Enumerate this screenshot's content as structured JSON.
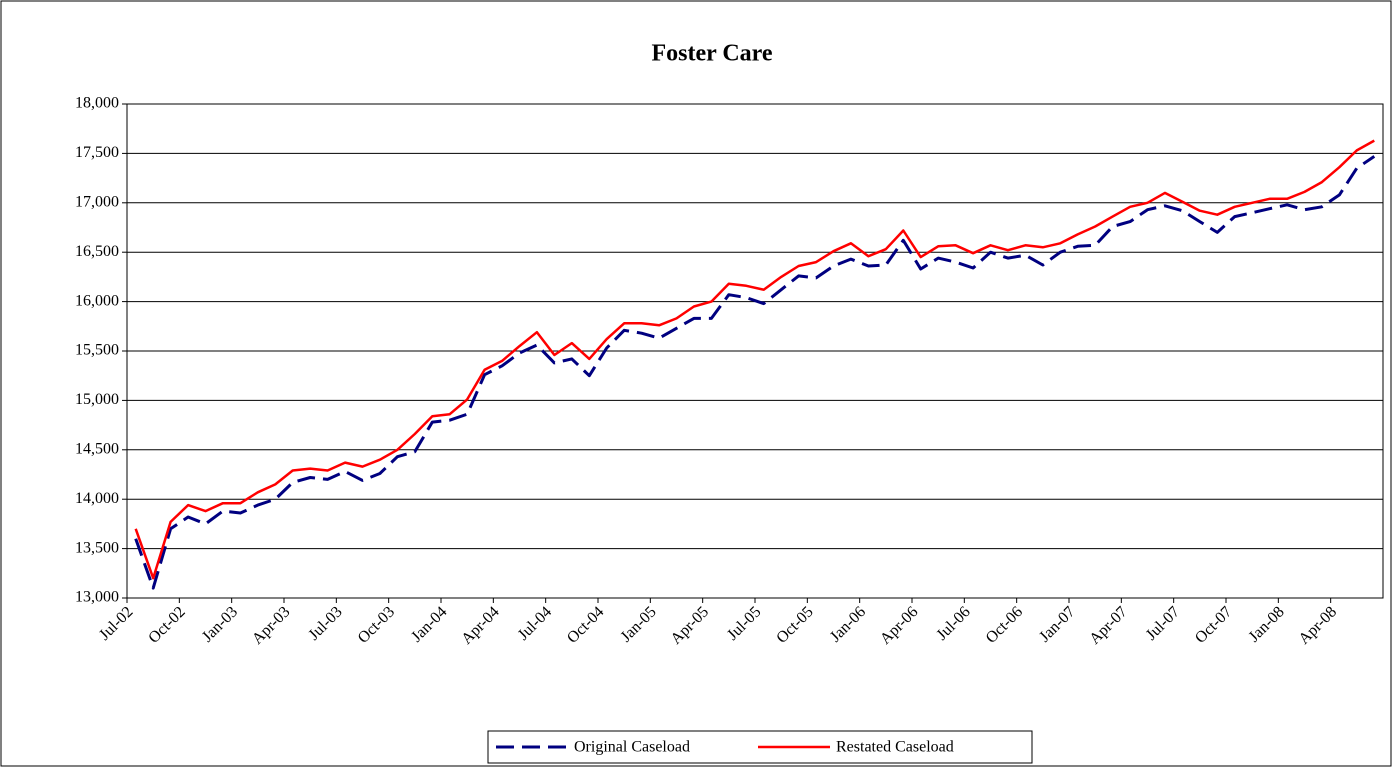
{
  "chart_data": {
    "type": "line",
    "title": "Foster Care",
    "categories": [
      "Jul-02",
      null,
      null,
      "Oct-02",
      null,
      null,
      "Jan-03",
      null,
      null,
      "Apr-03",
      null,
      null,
      "Jul-03",
      null,
      null,
      "Oct-03",
      null,
      null,
      "Jan-04",
      null,
      null,
      "Apr-04",
      null,
      null,
      "Jul-04",
      null,
      null,
      "Oct-04",
      null,
      null,
      "Jan-05",
      null,
      null,
      "Apr-05",
      null,
      null,
      "Jul-05",
      null,
      null,
      "Oct-05",
      null,
      null,
      "Jan-06",
      null,
      null,
      "Apr-06",
      null,
      null,
      "Jul-06",
      null,
      null,
      "Oct-06",
      null,
      null,
      "Jan-07",
      null,
      null,
      "Apr-07",
      null,
      null,
      "Jul-07",
      null,
      null,
      "Oct-07",
      null,
      null,
      "Jan-08",
      null,
      null,
      "Apr-08",
      null,
      null
    ],
    "series": [
      {
        "name": "Original Caseload",
        "color": "#000080",
        "dash": true,
        "values": [
          13600,
          13100,
          13700,
          13820,
          13750,
          13880,
          13860,
          13940,
          14000,
          14170,
          14220,
          14200,
          14280,
          14190,
          14260,
          14430,
          14480,
          14780,
          14800,
          14860,
          15260,
          15350,
          15480,
          15560,
          15380,
          15420,
          15250,
          15530,
          15710,
          15680,
          15630,
          15730,
          15830,
          15830,
          16070,
          16040,
          15980,
          16120,
          16260,
          16240,
          16360,
          16430,
          16360,
          16370,
          16620,
          16330,
          16440,
          16400,
          16340,
          16500,
          16440,
          16470,
          16370,
          16500,
          16560,
          16570,
          16760,
          16810,
          16930,
          16970,
          16920,
          16810,
          16700,
          16860,
          16900,
          16940,
          16980,
          16930,
          16960,
          17080,
          17350,
          17470
        ]
      },
      {
        "name": "Restated Caseload",
        "color": "#ff0000",
        "dash": false,
        "values": [
          13700,
          13200,
          13770,
          13940,
          13880,
          13960,
          13960,
          14070,
          14150,
          14290,
          14310,
          14290,
          14370,
          14330,
          14400,
          14500,
          14660,
          14840,
          14860,
          15010,
          15310,
          15400,
          15550,
          15690,
          15460,
          15580,
          15420,
          15620,
          15780,
          15780,
          15760,
          15830,
          15950,
          16000,
          16180,
          16160,
          16120,
          16250,
          16360,
          16400,
          16510,
          16590,
          16460,
          16530,
          16720,
          16450,
          16560,
          16570,
          16490,
          16570,
          16520,
          16570,
          16550,
          16590,
          16680,
          16760,
          16860,
          16960,
          17000,
          17100,
          17010,
          16920,
          16880,
          16960,
          17000,
          17040,
          17040,
          17110,
          17210,
          17360,
          17530,
          17630
        ]
      }
    ],
    "ylim": [
      13000,
      18000
    ],
    "yticks": [
      {
        "value": 13000,
        "label": "13,000"
      },
      {
        "value": 13500,
        "label": "13,500"
      },
      {
        "value": 14000,
        "label": "14,000"
      },
      {
        "value": 14500,
        "label": "14,500"
      },
      {
        "value": 15000,
        "label": "15,000"
      },
      {
        "value": 15500,
        "label": "15,500"
      },
      {
        "value": 16000,
        "label": "16,000"
      },
      {
        "value": 16500,
        "label": "16,500"
      },
      {
        "value": 17000,
        "label": "17,000"
      },
      {
        "value": 17500,
        "label": "17,500"
      },
      {
        "value": 18000,
        "label": "18,000"
      }
    ],
    "grid": true,
    "legend": "bottom"
  }
}
